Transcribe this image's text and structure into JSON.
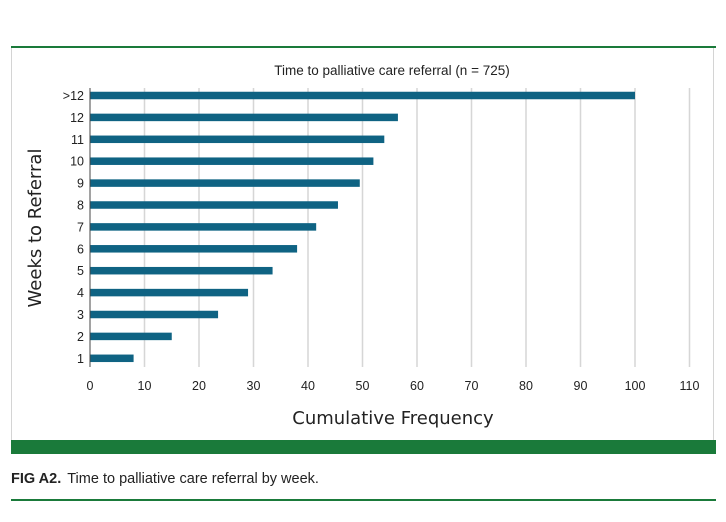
{
  "colors": {
    "bar": "#0f6383",
    "green": "#1a7a3a",
    "grid": "#d6d6d6",
    "axis": "#444444"
  },
  "figure": {
    "caption_label": "FIG A2.",
    "caption_text": "Time to palliative care referral by week."
  },
  "chart_data": {
    "type": "bar",
    "orientation": "horizontal",
    "title": "Time to palliative care referral (n = 725)",
    "xlabel": "Cumulative Frequency",
    "ylabel": "Weeks to Referral",
    "categories": [
      "1",
      "2",
      "3",
      "4",
      "5",
      "6",
      "7",
      "8",
      "9",
      "10",
      "11",
      "12",
      ">12"
    ],
    "values": [
      8,
      15,
      23.5,
      29,
      33.5,
      38,
      41.5,
      45.5,
      49.5,
      52,
      54,
      56.5,
      100
    ],
    "xlim": [
      0,
      110
    ],
    "xticks": [
      0,
      10,
      20,
      30,
      40,
      50,
      60,
      70,
      80,
      90,
      100,
      110
    ],
    "grid": true,
    "legend": "none"
  }
}
